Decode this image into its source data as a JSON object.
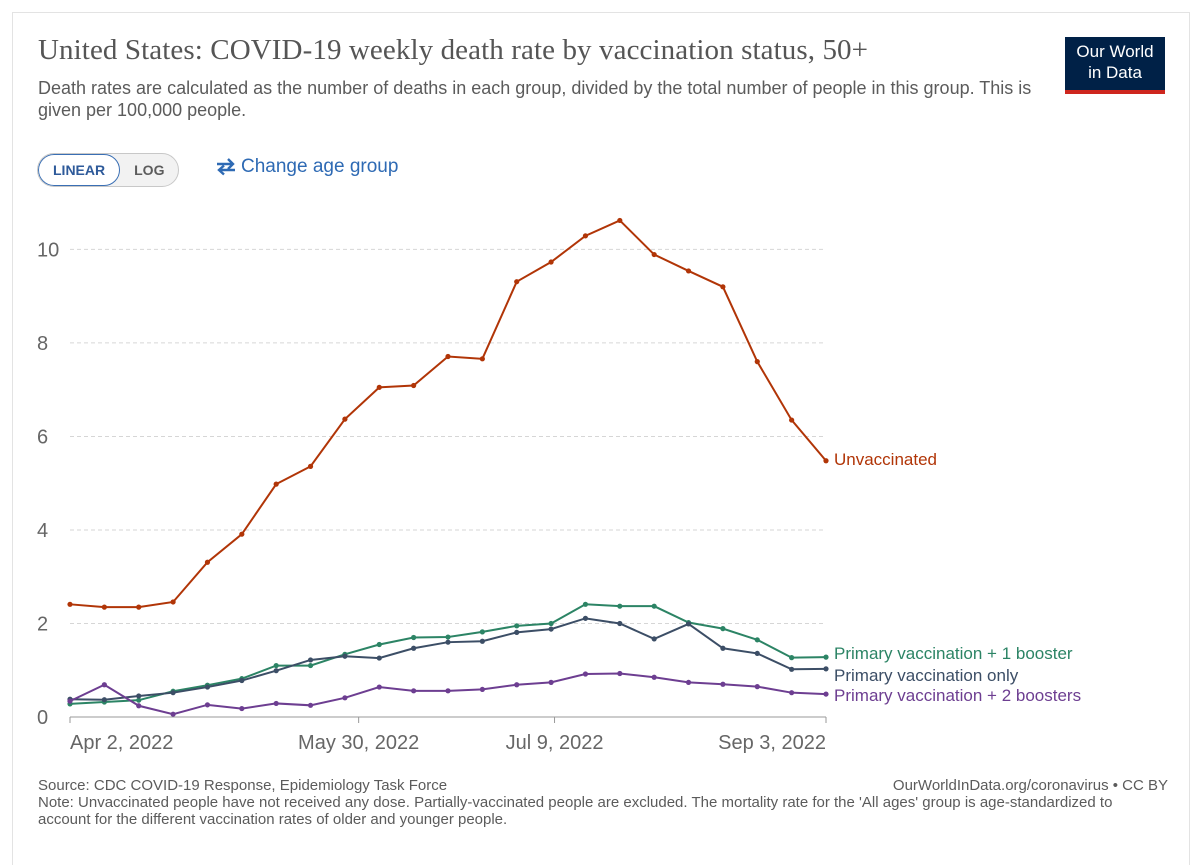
{
  "header": {
    "title": "United States: COVID-19 weekly death rate by vaccination status, 50+",
    "subtitle": "Death rates are calculated as the number of deaths in each group, divided by the total number of people in this group. This is given per 100,000 people.",
    "logo_line1": "Our World",
    "logo_line2": "in Data"
  },
  "controls": {
    "scale_options": [
      "LINEAR",
      "LOG"
    ],
    "selected_scale": "LINEAR",
    "change_age_label": "Change age group"
  },
  "chart_data": {
    "type": "line",
    "title": "United States: COVID-19 weekly death rate by vaccination status, 50+",
    "xlabel": "",
    "ylabel": "",
    "ylim": [
      0,
      10.8
    ],
    "y_ticks": [
      0,
      2,
      4,
      6,
      8,
      10
    ],
    "x_tick_labels": [
      "Apr 2, 2022",
      "May 30, 2022",
      "Jul 9, 2022",
      "Sep 3, 2022"
    ],
    "x_tick_indices": [
      0,
      8.4,
      14.1,
      22
    ],
    "grid": true,
    "legend_placement": "right",
    "x": [
      "Apr 2, 2022",
      "Apr 9, 2022",
      "Apr 16, 2022",
      "Apr 23, 2022",
      "Apr 30, 2022",
      "May 7, 2022",
      "May 14, 2022",
      "May 21, 2022",
      "May 28, 2022",
      "Jun 4, 2022",
      "Jun 11, 2022",
      "Jun 18, 2022",
      "Jun 25, 2022",
      "Jul 2, 2022",
      "Jul 9, 2022",
      "Jul 16, 2022",
      "Jul 23, 2022",
      "Jul 30, 2022",
      "Aug 6, 2022",
      "Aug 13, 2022",
      "Aug 20, 2022",
      "Aug 27, 2022",
      "Sep 3, 2022"
    ],
    "series": [
      {
        "name": "Unvaccinated",
        "color": "#b13507",
        "values": [
          2.41,
          2.35,
          2.35,
          2.46,
          3.31,
          3.91,
          4.98,
          5.36,
          6.37,
          7.05,
          7.09,
          7.71,
          7.66,
          9.31,
          9.73,
          10.29,
          10.62,
          9.89,
          9.54,
          9.2,
          7.6,
          6.35,
          5.48
        ]
      },
      {
        "name": "Primary vaccination + 1 booster",
        "color": "#2c8465",
        "values": [
          0.28,
          0.32,
          0.36,
          0.55,
          0.68,
          0.82,
          1.1,
          1.1,
          1.34,
          1.55,
          1.7,
          1.71,
          1.82,
          1.95,
          2.0,
          2.41,
          2.37,
          2.37,
          2.02,
          1.89,
          1.65,
          1.27,
          1.28
        ]
      },
      {
        "name": "Primary vaccination only",
        "color": "#3c4e66",
        "values": [
          0.38,
          0.37,
          0.45,
          0.52,
          0.64,
          0.78,
          0.99,
          1.22,
          1.3,
          1.26,
          1.47,
          1.6,
          1.62,
          1.81,
          1.88,
          2.11,
          2.0,
          1.67,
          1.99,
          1.47,
          1.36,
          1.02,
          1.03
        ]
      },
      {
        "name": "Primary vaccination + 2 boosters",
        "color": "#6d3e91",
        "values": [
          0.34,
          0.69,
          0.24,
          0.06,
          0.26,
          0.18,
          0.29,
          0.25,
          0.41,
          0.64,
          0.56,
          0.56,
          0.59,
          0.69,
          0.74,
          0.92,
          0.93,
          0.85,
          0.74,
          0.7,
          0.65,
          0.52,
          0.49
        ]
      }
    ]
  },
  "footer": {
    "source": "Source: CDC COVID-19 Response, Epidemiology Task Force",
    "url_license": "OurWorldInData.org/coronavirus • CC BY",
    "note": "Note: Unvaccinated people have not received any dose. Partially-vaccinated people are excluded. The mortality rate for the 'All ages' group is age-standardized to account for the different vaccination rates of older and younger people."
  }
}
